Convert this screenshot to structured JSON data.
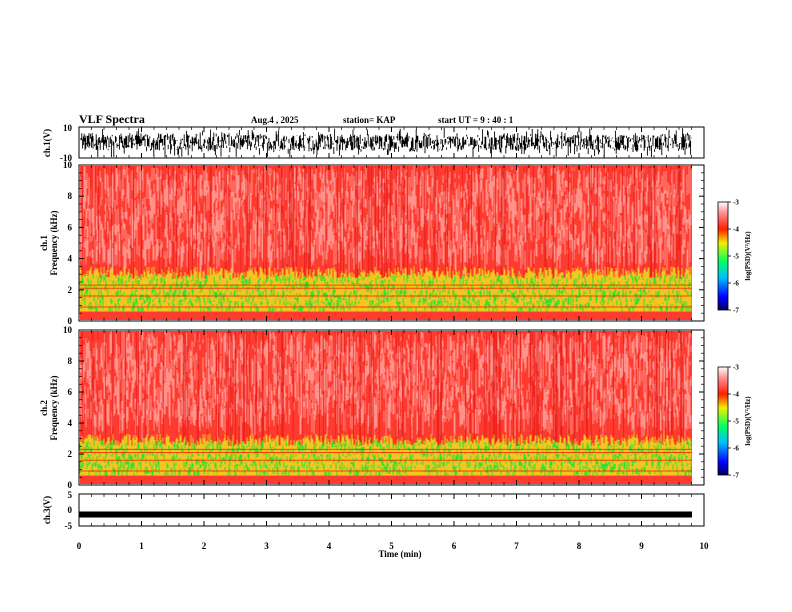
{
  "header": {
    "title": "VLF Spectra",
    "date": "Aug.4 , 2025",
    "station": "station= KAP",
    "start": "start UT = 9 : 40 : 1"
  },
  "colors": {
    "spec_bg": "#ff3b2f",
    "spec_light": "#ffd0cc",
    "spec_yellow": "#f0e020",
    "spec_green": "#30e030"
  },
  "chart_data": [
    {
      "type": "line",
      "name": "ch1-waveform",
      "ylabel": "ch.1(V)",
      "ylim": [
        -10,
        10
      ],
      "yticks": [
        "10",
        "-10"
      ],
      "xlim": [
        0,
        10
      ]
    },
    {
      "type": "heatmap",
      "name": "ch1-spectrogram",
      "ylabel_line1": "ch.1",
      "ylabel_line2": "Frequency (kHz)",
      "ylim": [
        0,
        10
      ],
      "yticks": [
        "0",
        "2",
        "4",
        "6",
        "8",
        "10"
      ],
      "xlim": [
        0,
        10
      ],
      "colorbar": {
        "label": "log(PSD)(V²/Hz)",
        "ticks": [
          "-3",
          "-4",
          "-5",
          "-6",
          "-7"
        ],
        "range": [
          -7,
          -3
        ]
      }
    },
    {
      "type": "heatmap",
      "name": "ch2-spectrogram",
      "ylabel_line1": "ch.2",
      "ylabel_line2": "Frequency (kHz)",
      "ylim": [
        0,
        10
      ],
      "yticks": [
        "0",
        "2",
        "4",
        "6",
        "8",
        "10"
      ],
      "xlim": [
        0,
        10
      ],
      "colorbar": {
        "label": "log(PSD)(V²/Hz)",
        "ticks": [
          "-3",
          "-4",
          "-5",
          "-6",
          "-7"
        ],
        "range": [
          -7,
          -3
        ]
      }
    },
    {
      "type": "line",
      "name": "ch3-waveform",
      "ylabel": "ch.3(V)",
      "ylim": [
        -5,
        5
      ],
      "yticks": [
        "5",
        "0",
        "-5"
      ],
      "xlim": [
        0,
        10
      ],
      "level": -1.4
    }
  ],
  "xaxis": {
    "label": "Time (min)",
    "ticks": [
      "0",
      "1",
      "2",
      "3",
      "4",
      "5",
      "6",
      "7",
      "8",
      "9",
      "10"
    ]
  }
}
